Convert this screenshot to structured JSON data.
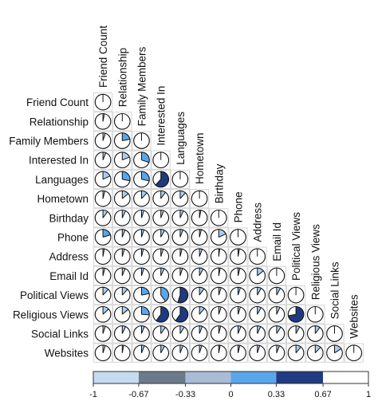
{
  "chart_data": {
    "type": "heatmap",
    "title": "",
    "variables": [
      "Friend Count",
      "Relationship",
      "Family Members",
      "Interested In",
      "Languages",
      "Hometown",
      "Birthday",
      "Phone",
      "Address",
      "Email Id",
      "Political Views",
      "Religious Views",
      "Social Links",
      "Websites"
    ],
    "correlations": [
      [
        1
      ],
      [
        0.03,
        1
      ],
      [
        0.05,
        0.22,
        1
      ],
      [
        0.06,
        0.19,
        0.3,
        1
      ],
      [
        0.18,
        0.28,
        0.28,
        0.62,
        1
      ],
      [
        0.04,
        0.14,
        0.12,
        0.1,
        0.12,
        1
      ],
      [
        0.1,
        0.07,
        0.05,
        0.06,
        0.07,
        0.03,
        1
      ],
      [
        0.2,
        0.06,
        0.05,
        0.08,
        0.06,
        0.04,
        0.18,
        1
      ],
      [
        0.03,
        0.05,
        0.04,
        0.05,
        0.04,
        0.06,
        0.02,
        0.03,
        1
      ],
      [
        0.04,
        0.06,
        0.05,
        0.07,
        0.05,
        0.08,
        0.03,
        0.04,
        0.14,
        1
      ],
      [
        0.12,
        0.12,
        0.22,
        0.4,
        0.55,
        0.1,
        0.05,
        0.05,
        0.08,
        0.08,
        1
      ],
      [
        0.13,
        0.14,
        0.26,
        0.6,
        0.6,
        0.11,
        0.05,
        0.05,
        0.08,
        0.07,
        0.72,
        1
      ],
      [
        0.05,
        0.07,
        0.06,
        0.1,
        0.09,
        0.06,
        0.04,
        0.06,
        0.07,
        0.09,
        0.08,
        0.1,
        1
      ],
      [
        0.05,
        0.03,
        0.06,
        0.08,
        0.06,
        0.05,
        0.03,
        0.04,
        0.05,
        0.06,
        0.11,
        0.12,
        0.16,
        1
      ]
    ],
    "colorbar": {
      "ticks": [
        "-1",
        "-0.67",
        "-0.33",
        "0",
        "0.33",
        "0.67",
        "1"
      ],
      "range": [
        -1,
        1
      ],
      "bins": [
        {
          "from": -1,
          "to": -0.67,
          "color": "#c6dbef"
        },
        {
          "from": -0.67,
          "to": -0.33,
          "color": "#6b7b8c"
        },
        {
          "from": -0.33,
          "to": 0,
          "color": "#a9bcd6"
        },
        {
          "from": 0,
          "to": 0.33,
          "color": "#5aa6ea"
        },
        {
          "from": 0.33,
          "to": 0.67,
          "color": "#1f3a80"
        },
        {
          "from": 0.67,
          "to": 1,
          "color": "#ffffff"
        }
      ]
    },
    "pie_fill_colors": {
      "weak": "#a9cdf2",
      "moderate": "#5aa6ea",
      "strong": "#1f3a80",
      "full": "#ffffff"
    },
    "grid": false,
    "legend_placement": "bottom"
  }
}
